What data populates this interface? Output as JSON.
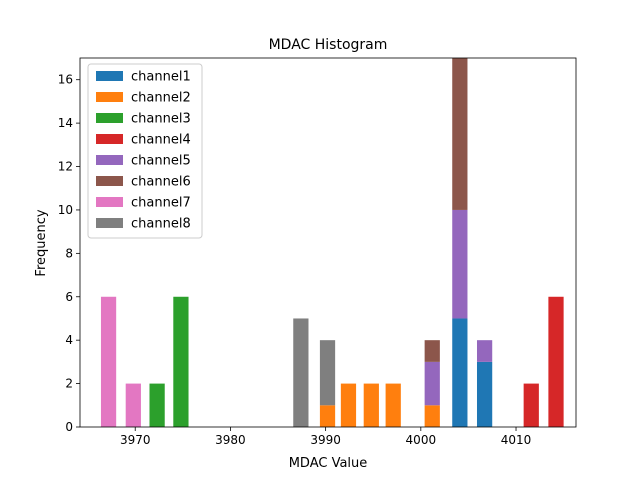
{
  "chart_data": {
    "type": "bar",
    "stacked": true,
    "title": "MDAC Histogram",
    "xlabel": "MDAC Value",
    "ylabel": "Frequency",
    "xlim": [
      3964.2,
      4016.3
    ],
    "ylim": [
      0,
      17
    ],
    "xticks": [
      3970,
      3980,
      3990,
      4000,
      4010
    ],
    "yticks": [
      0,
      2,
      4,
      6,
      8,
      10,
      12,
      14,
      16
    ],
    "bin_width": 1.6,
    "legend_position": "top-left",
    "series": [
      {
        "name": "channel1",
        "color": "#1f77b4",
        "bars": [
          {
            "x": 4004.1,
            "value": 5
          },
          {
            "x": 4006.7,
            "value": 3
          }
        ]
      },
      {
        "name": "channel2",
        "color": "#ff7f0e",
        "bars": [
          {
            "x": 3990.2,
            "value": 1
          },
          {
            "x": 3992.4,
            "value": 2
          },
          {
            "x": 3994.8,
            "value": 2
          },
          {
            "x": 3997.1,
            "value": 2
          },
          {
            "x": 4001.2,
            "value": 1
          }
        ]
      },
      {
        "name": "channel3",
        "color": "#2ca02c",
        "bars": [
          {
            "x": 3972.3,
            "value": 2
          },
          {
            "x": 3974.8,
            "value": 6
          }
        ]
      },
      {
        "name": "channel4",
        "color": "#d62728",
        "bars": [
          {
            "x": 4011.6,
            "value": 2
          },
          {
            "x": 4014.2,
            "value": 6
          }
        ]
      },
      {
        "name": "channel5",
        "color": "#9467bd",
        "bars": [
          {
            "x": 4001.2,
            "value": 2
          },
          {
            "x": 4004.1,
            "value": 5
          },
          {
            "x": 4006.7,
            "value": 1
          }
        ]
      },
      {
        "name": "channel6",
        "color": "#8c564b",
        "bars": [
          {
            "x": 4001.2,
            "value": 1
          },
          {
            "x": 4004.1,
            "value": 7
          }
        ]
      },
      {
        "name": "channel7",
        "color": "#e377c2",
        "bars": [
          {
            "x": 3967.2,
            "value": 6
          },
          {
            "x": 3969.8,
            "value": 2
          }
        ]
      },
      {
        "name": "channel8",
        "color": "#7f7f7f",
        "bars": [
          {
            "x": 3987.4,
            "value": 5
          },
          {
            "x": 3990.2,
            "value": 3
          }
        ]
      }
    ]
  }
}
